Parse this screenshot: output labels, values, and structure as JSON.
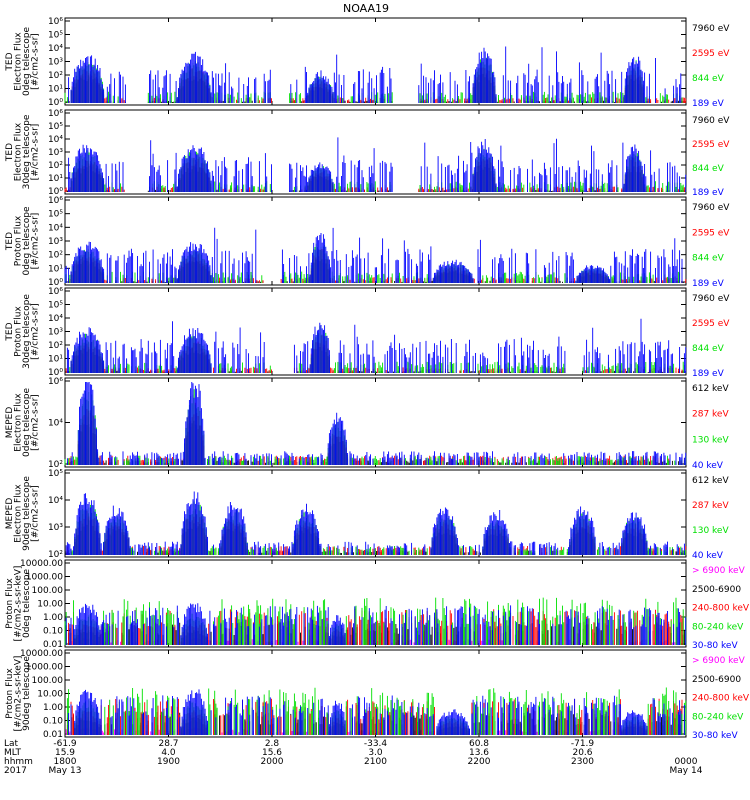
{
  "title": "NOAA19",
  "colors": {
    "blue": "#0000ff",
    "red": "#ff0000",
    "green": "#00e000",
    "black": "#000000",
    "magenta": "#ff00ff"
  },
  "footer": {
    "row_labels": [
      "Lat",
      "MLT",
      "hhmm",
      "2017"
    ],
    "ticks": [
      {
        "lat": "-61.9",
        "mlt": "15.9",
        "hhmm": "1800",
        "date": "May 13"
      },
      {
        "lat": "28.7",
        "mlt": "4.0",
        "hhmm": "1900",
        "date": ""
      },
      {
        "lat": "2.8",
        "mlt": "15.6",
        "hhmm": "2000",
        "date": ""
      },
      {
        "lat": "-33.4",
        "mlt": "3.0",
        "hhmm": "2100",
        "date": ""
      },
      {
        "lat": "60.8",
        "mlt": "13.6",
        "hhmm": "2200",
        "date": ""
      },
      {
        "lat": "-71.9",
        "mlt": "20.6",
        "hhmm": "2300",
        "date": ""
      },
      {
        "lat": "",
        "mlt": "",
        "hhmm": "0000",
        "date": "May 14"
      }
    ]
  },
  "chart_data": [
    {
      "type": "line",
      "ylabel": [
        "TED",
        "Electron Flux",
        "0deg telescope",
        "[#/cm2-s-sr]"
      ],
      "y_scale": "log",
      "ytick_labels": [
        "10⁰",
        "10¹",
        "10²",
        "10³",
        "10⁴",
        "10⁵",
        "10⁶"
      ],
      "series": [
        {
          "name": "7960 eV",
          "color": "#000000"
        },
        {
          "name": "2595 eV",
          "color": "#ff0000"
        },
        {
          "name": "844 eV",
          "color": "#00e000"
        },
        {
          "name": "189 eV",
          "color": "#0000ff"
        }
      ],
      "style": "ted_e"
    },
    {
      "type": "line",
      "ylabel": [
        "TED",
        "Electron Flux",
        "30deg telescope",
        "[#/cm2-s-sr]"
      ],
      "y_scale": "log",
      "ytick_labels": [
        "10⁰",
        "10¹",
        "10²",
        "10³",
        "10⁴",
        "10⁵",
        "10⁶"
      ],
      "series": [
        {
          "name": "7960 eV",
          "color": "#000000"
        },
        {
          "name": "2595 eV",
          "color": "#ff0000"
        },
        {
          "name": "844 eV",
          "color": "#00e000"
        },
        {
          "name": "189 eV",
          "color": "#0000ff"
        }
      ],
      "style": "ted_e"
    },
    {
      "type": "line",
      "ylabel": [
        "TED",
        "Proton Flux",
        "0deg telescope",
        "[#/cm2-s-sr]"
      ],
      "y_scale": "log",
      "ytick_labels": [
        "10⁰",
        "10¹",
        "10²",
        "10³",
        "10⁴",
        "10⁵",
        "10⁶"
      ],
      "series": [
        {
          "name": "7960 eV",
          "color": "#000000"
        },
        {
          "name": "2595 eV",
          "color": "#ff0000"
        },
        {
          "name": "844 eV",
          "color": "#00e000"
        },
        {
          "name": "189 eV",
          "color": "#0000ff"
        }
      ],
      "style": "ted_p"
    },
    {
      "type": "line",
      "ylabel": [
        "TED",
        "Proton Flux",
        "30deg telescope",
        "[#/cm2-s-sr]"
      ],
      "y_scale": "log",
      "ytick_labels": [
        "10⁰",
        "10¹",
        "10²",
        "10³",
        "10⁴",
        "10⁵",
        "10⁶"
      ],
      "series": [
        {
          "name": "7960 eV",
          "color": "#000000"
        },
        {
          "name": "2595 eV",
          "color": "#ff0000"
        },
        {
          "name": "844 eV",
          "color": "#00e000"
        },
        {
          "name": "189 eV",
          "color": "#0000ff"
        }
      ],
      "style": "ted_p2"
    },
    {
      "type": "line",
      "ylabel": [
        "MEPED",
        "Electron Flux",
        "0deg telescope",
        "[#/cm2-s-sr]"
      ],
      "y_scale": "log",
      "ytick_labels": [
        "10²",
        "10⁴",
        "10⁶"
      ],
      "series": [
        {
          "name": "612 keV",
          "color": "#000000"
        },
        {
          "name": "287 keV",
          "color": "#ff0000"
        },
        {
          "name": "130 keV",
          "color": "#00e000"
        },
        {
          "name": "40 keV",
          "color": "#0000ff"
        }
      ],
      "style": "mep0"
    },
    {
      "type": "line",
      "ylabel": [
        "MEPED",
        "Electron Flux",
        "90deg telescope",
        "[#/cm2-s-sr]"
      ],
      "y_scale": "log",
      "ytick_labels": [
        "10²",
        "10³",
        "10⁴",
        "10⁵"
      ],
      "series": [
        {
          "name": "612 keV",
          "color": "#000000"
        },
        {
          "name": "287 keV",
          "color": "#ff0000"
        },
        {
          "name": "130 keV",
          "color": "#00e000"
        },
        {
          "name": "40 keV",
          "color": "#0000ff"
        }
      ],
      "style": "mep90"
    },
    {
      "type": "line",
      "ylabel": [
        "Proton Flux",
        "[#/cm2-s-sr-keV]",
        "0deg telescope"
      ],
      "y_scale": "log",
      "ytick_labels": [
        "0.01",
        "0.10",
        "1.00",
        "10.00",
        "100.00",
        "1000.00",
        "10000.00"
      ],
      "series": [
        {
          "name": "> 6900 keV",
          "color": "#ff00ff"
        },
        {
          "name": "2500-6900",
          "color": "#000000"
        },
        {
          "name": "240-800 keV",
          "color": "#ff0000"
        },
        {
          "name": "80-240 keV",
          "color": "#00e000"
        },
        {
          "name": "30-80 keV",
          "color": "#0000ff"
        }
      ],
      "style": "pro0"
    },
    {
      "type": "line",
      "ylabel": [
        "Proton Flux",
        "[#/cm2-s-sr-keV]",
        "90deg telescope"
      ],
      "y_scale": "log",
      "ytick_labels": [
        "0.01",
        "0.10",
        "1.00",
        "10.00",
        "100.00",
        "1000.00",
        "10000.00"
      ],
      "series": [
        {
          "name": "> 6900 keV",
          "color": "#ff00ff"
        },
        {
          "name": "2500-6900",
          "color": "#000000"
        },
        {
          "name": "240-800 keV",
          "color": "#ff0000"
        },
        {
          "name": "80-240 keV",
          "color": "#00e000"
        },
        {
          "name": "30-80 keV",
          "color": "#0000ff"
        }
      ],
      "style": "pro90"
    }
  ]
}
